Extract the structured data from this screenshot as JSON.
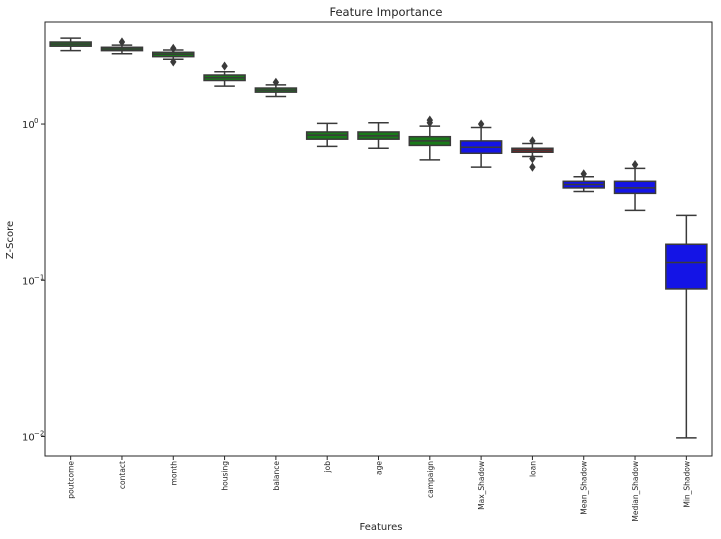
{
  "chart_data": {
    "type": "boxplot",
    "title": "Feature Importance",
    "xlabel": "Features",
    "ylabel": "Z-Score",
    "yscale": "log",
    "ylim": [
      0.0075,
      4.5
    ],
    "yticks": [
      {
        "value": 0.01,
        "base": "10",
        "exp": "−2"
      },
      {
        "value": 0.1,
        "base": "10",
        "exp": "−1"
      },
      {
        "value": 1,
        "base": "10",
        "exp": "0"
      }
    ],
    "grid": false,
    "colors": {
      "accepted": "#1a7a1a",
      "rejected": "#8b1a1a",
      "shadow": "#1414e6"
    },
    "categories": [
      "poutcome",
      "contact",
      "month",
      "housing",
      "balance",
      "job",
      "age",
      "campaign",
      "Max_Shadow",
      "loan",
      "Mean_Shadow",
      "Median_Shadow",
      "Min_Shadow"
    ],
    "boxes": [
      {
        "name": "poutcome",
        "group": "accepted",
        "whislo": 2.95,
        "q1": 3.15,
        "med": 3.25,
        "q3": 3.35,
        "whishi": 3.55,
        "fliers": []
      },
      {
        "name": "contact",
        "group": "accepted",
        "whislo": 2.82,
        "q1": 2.95,
        "med": 3.02,
        "q3": 3.1,
        "whishi": 3.2,
        "fliers": [
          3.35
        ]
      },
      {
        "name": "month",
        "group": "accepted",
        "whislo": 2.6,
        "q1": 2.7,
        "med": 2.8,
        "q3": 2.88,
        "whishi": 2.98,
        "fliers": [
          2.5,
          3.05
        ]
      },
      {
        "name": "housing",
        "group": "accepted",
        "whislo": 1.75,
        "q1": 1.9,
        "med": 1.98,
        "q3": 2.06,
        "whishi": 2.16,
        "fliers": [
          2.35
        ]
      },
      {
        "name": "balance",
        "group": "accepted",
        "whislo": 1.5,
        "q1": 1.6,
        "med": 1.65,
        "q3": 1.7,
        "whishi": 1.78,
        "fliers": [
          1.85
        ]
      },
      {
        "name": "job",
        "group": "accepted",
        "whislo": 0.72,
        "q1": 0.8,
        "med": 0.85,
        "q3": 0.89,
        "whishi": 1.01,
        "fliers": []
      },
      {
        "name": "age",
        "group": "accepted",
        "whislo": 0.7,
        "q1": 0.8,
        "med": 0.84,
        "q3": 0.89,
        "whishi": 1.02,
        "fliers": []
      },
      {
        "name": "campaign",
        "group": "accepted",
        "whislo": 0.59,
        "q1": 0.73,
        "med": 0.78,
        "q3": 0.83,
        "whishi": 0.97,
        "fliers": [
          1.02,
          1.06
        ]
      },
      {
        "name": "Max_Shadow",
        "group": "shadow",
        "whislo": 0.53,
        "q1": 0.65,
        "med": 0.71,
        "q3": 0.78,
        "whishi": 0.95,
        "fliers": [
          1.0
        ]
      },
      {
        "name": "loan",
        "group": "rejected",
        "whislo": 0.62,
        "q1": 0.66,
        "med": 0.68,
        "q3": 0.7,
        "whishi": 0.75,
        "fliers": [
          0.53,
          0.6,
          0.78
        ]
      },
      {
        "name": "Mean_Shadow",
        "group": "shadow",
        "whislo": 0.37,
        "q1": 0.39,
        "med": 0.41,
        "q3": 0.43,
        "whishi": 0.46,
        "fliers": [
          0.48
        ]
      },
      {
        "name": "Median_Shadow",
        "group": "shadow",
        "whislo": 0.28,
        "q1": 0.36,
        "med": 0.39,
        "q3": 0.43,
        "whishi": 0.52,
        "fliers": [
          0.55
        ]
      },
      {
        "name": "Min_Shadow",
        "group": "shadow",
        "whislo": 0.0098,
        "q1": 0.088,
        "med": 0.13,
        "q3": 0.17,
        "whishi": 0.26,
        "fliers": []
      }
    ]
  }
}
